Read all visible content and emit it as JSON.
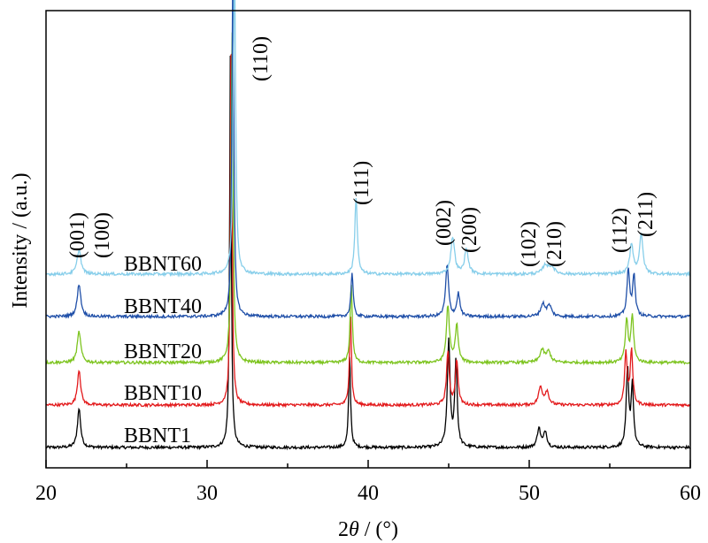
{
  "chart_data": {
    "type": "line",
    "title": "",
    "xlabel_parts": [
      "2",
      "θ",
      " / (°)"
    ],
    "ylabel": "Intensity / (a.u.)",
    "xlim": [
      20,
      60
    ],
    "x_ticks": [
      20,
      30,
      40,
      50,
      60
    ],
    "x_tick_labels": [
      "20",
      "30",
      "40",
      "50",
      "60"
    ],
    "grid": false,
    "series": [
      {
        "name": "BBNT1",
        "color": "#000000",
        "baseline": 0,
        "noise": 1.6,
        "peaks": [
          {
            "x": 22.05,
            "h": 44,
            "w": 0.12
          },
          {
            "x": 31.45,
            "h": 455,
            "w": 0.06
          },
          {
            "x": 38.85,
            "h": 105,
            "w": 0.07
          },
          {
            "x": 45.0,
            "h": 120,
            "w": 0.1
          },
          {
            "x": 45.45,
            "h": 98,
            "w": 0.09
          },
          {
            "x": 50.6,
            "h": 22,
            "w": 0.12
          },
          {
            "x": 51.0,
            "h": 18,
            "w": 0.12
          },
          {
            "x": 56.1,
            "h": 88,
            "w": 0.09
          },
          {
            "x": 56.4,
            "h": 70,
            "w": 0.09
          }
        ]
      },
      {
        "name": "BBNT10",
        "color": "#e31a1c",
        "baseline": 48,
        "noise": 1.6,
        "peaks": [
          {
            "x": 22.05,
            "h": 40,
            "w": 0.12
          },
          {
            "x": 31.5,
            "h": 440,
            "w": 0.06
          },
          {
            "x": 38.9,
            "h": 108,
            "w": 0.07
          },
          {
            "x": 44.95,
            "h": 60,
            "w": 0.1
          },
          {
            "x": 45.5,
            "h": 50,
            "w": 0.1
          },
          {
            "x": 50.7,
            "h": 20,
            "w": 0.14
          },
          {
            "x": 51.1,
            "h": 15,
            "w": 0.14
          },
          {
            "x": 56.0,
            "h": 60,
            "w": 0.09
          },
          {
            "x": 56.35,
            "h": 62,
            "w": 0.09
          }
        ]
      },
      {
        "name": "BBNT20",
        "color": "#7dc41f",
        "baseline": 96,
        "noise": 1.6,
        "peaks": [
          {
            "x": 22.05,
            "h": 35,
            "w": 0.13
          },
          {
            "x": 31.55,
            "h": 380,
            "w": 0.07
          },
          {
            "x": 38.95,
            "h": 88,
            "w": 0.08
          },
          {
            "x": 44.95,
            "h": 64,
            "w": 0.11
          },
          {
            "x": 45.5,
            "h": 42,
            "w": 0.11
          },
          {
            "x": 50.8,
            "h": 14,
            "w": 0.16
          },
          {
            "x": 51.2,
            "h": 12,
            "w": 0.16
          },
          {
            "x": 56.05,
            "h": 48,
            "w": 0.1
          },
          {
            "x": 56.4,
            "h": 52,
            "w": 0.1
          }
        ]
      },
      {
        "name": "BBNT40",
        "color": "#1f4fa8",
        "baseline": 148,
        "noise": 1.6,
        "peaks": [
          {
            "x": 22.05,
            "h": 37,
            "w": 0.13
          },
          {
            "x": 31.6,
            "h": 405,
            "w": 0.07
          },
          {
            "x": 39.0,
            "h": 50,
            "w": 0.08
          },
          {
            "x": 44.9,
            "h": 58,
            "w": 0.11
          },
          {
            "x": 45.6,
            "h": 26,
            "w": 0.11
          },
          {
            "x": 50.85,
            "h": 14,
            "w": 0.16
          },
          {
            "x": 51.25,
            "h": 12,
            "w": 0.16
          },
          {
            "x": 56.15,
            "h": 52,
            "w": 0.1
          },
          {
            "x": 56.5,
            "h": 46,
            "w": 0.1
          }
        ]
      },
      {
        "name": "BBNT60",
        "color": "#87ceea",
        "baseline": 196,
        "noise": 1.6,
        "peaks": [
          {
            "x": 22.05,
            "h": 28,
            "w": 0.14
          },
          {
            "x": 31.7,
            "h": 365,
            "w": 0.08
          },
          {
            "x": 39.25,
            "h": 88,
            "w": 0.09
          },
          {
            "x": 45.25,
            "h": 42,
            "w": 0.14
          },
          {
            "x": 46.1,
            "h": 28,
            "w": 0.14
          },
          {
            "x": 51.0,
            "h": 10,
            "w": 0.2
          },
          {
            "x": 51.4,
            "h": 8,
            "w": 0.2
          },
          {
            "x": 56.35,
            "h": 34,
            "w": 0.13
          },
          {
            "x": 56.95,
            "h": 44,
            "w": 0.13
          }
        ]
      }
    ],
    "peak_labels": [
      "(001)",
      "(100)",
      "(110)",
      "(111)",
      "(002)",
      "(200)",
      "(102)",
      "(210)",
      "(112)",
      "(211)"
    ]
  }
}
